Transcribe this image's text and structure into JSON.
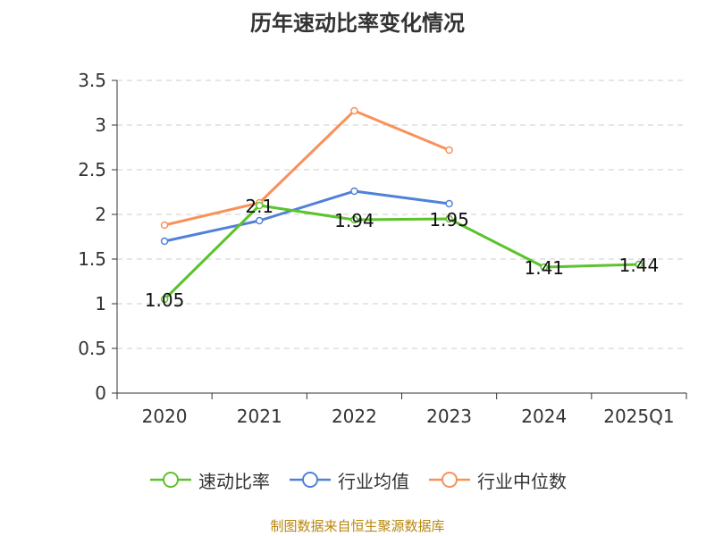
{
  "chart_data": {
    "type": "line",
    "title": "历年速动比率变化情况",
    "categories": [
      "2020",
      "2021",
      "2022",
      "2023",
      "2024",
      "2025Q1"
    ],
    "ylim": [
      0,
      3.5
    ],
    "yticks": [
      "0",
      "0.5",
      "1",
      "1.5",
      "2",
      "2.5",
      "3",
      "3.5"
    ],
    "grid": true,
    "legend_position": "bottom",
    "series": [
      {
        "name": "速动比率",
        "color": "#5cc22e",
        "values": [
          1.05,
          2.1,
          1.94,
          1.95,
          1.41,
          1.44
        ],
        "labels": [
          "1.05",
          "2.1",
          "1.94",
          "1.95",
          "1.41",
          "1.44"
        ]
      },
      {
        "name": "行业均值",
        "color": "#4f81d9",
        "values": [
          1.7,
          1.93,
          2.26,
          2.12,
          null,
          null
        ]
      },
      {
        "name": "行业中位数",
        "color": "#f7925a",
        "values": [
          1.88,
          2.13,
          3.16,
          2.72,
          null,
          null
        ]
      }
    ]
  },
  "source": "制图数据来自恒生聚源数据库"
}
